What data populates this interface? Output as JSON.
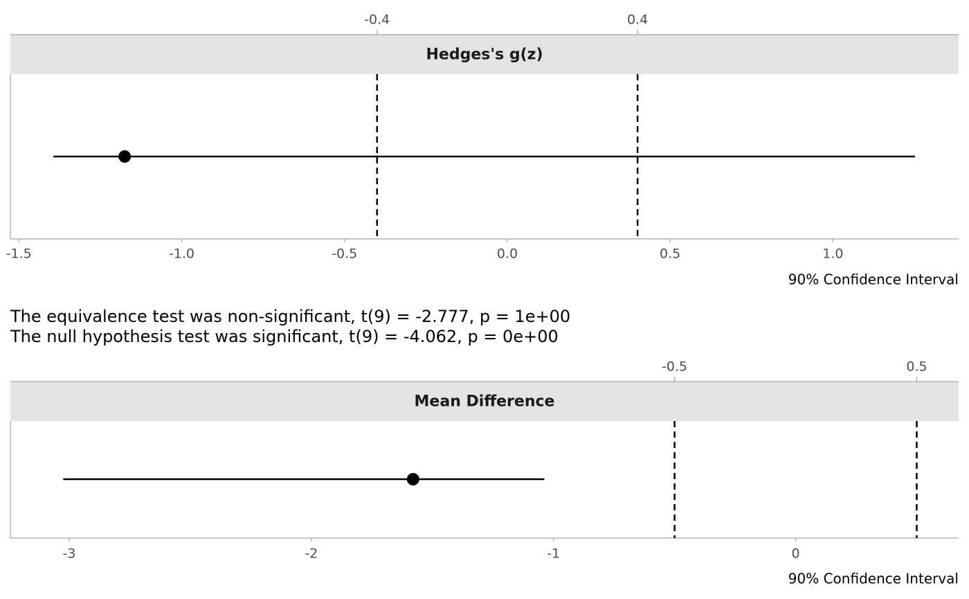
{
  "chart_data": [
    {
      "type": "interval",
      "title": "Hedges's g(z)",
      "xlabel": "90% Confidence Interval",
      "xlim": [
        -1.526,
        1.386
      ],
      "xticks": [
        -1.5,
        {
          "value": -1.0,
          "label": "-1.0"
        },
        -0.5,
        {
          "value": 0,
          "label": "0.0"
        },
        0.5,
        {
          "value": 1.0,
          "label": "1.0"
        }
      ],
      "x2ticks": [
        -0.4,
        0.4
      ],
      "bounds": [
        -0.4,
        0.4
      ],
      "estimate": -1.175,
      "ci": [
        -1.394,
        1.252
      ],
      "color": "#000000"
    },
    {
      "type": "interval",
      "title": "Mean Difference",
      "xlabel": "90% Confidence Interval",
      "xlim": [
        -3.243,
        0.673
      ],
      "xticks": [
        -3,
        -2,
        -1,
        0
      ],
      "x2ticks": [
        -0.5,
        0.5
      ],
      "bounds": [
        -0.5,
        0.5
      ],
      "estimate": -1.58,
      "ci": [
        -3.025,
        -1.038
      ],
      "color": "#000000"
    }
  ],
  "text_lines": [
    "The equivalence test was non-significant, t(9) = -2.777, p = 1e+00",
    "The null hypothesis test was significant, t(9) = -4.062, p = 0e+00"
  ]
}
